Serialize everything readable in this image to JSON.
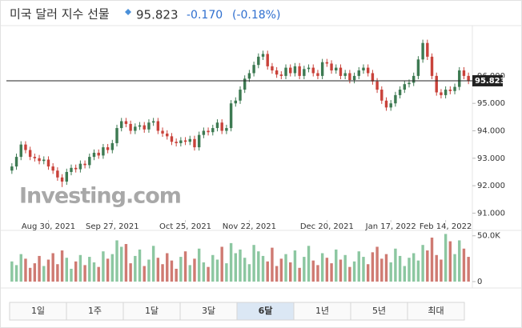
{
  "header": {
    "title": "미국 달러 지수 선물",
    "price": "95.823",
    "change": "-0.170",
    "change_percent": "(-0.18%)"
  },
  "logo": "Investing.com",
  "chart_data": [
    {
      "type": "candlestick",
      "up_color": "#3d7a52",
      "down_color": "#c9423a",
      "last_price": 95.823,
      "last_color": "#222222",
      "xlim": [
        -1.2,
        100.5
      ],
      "xticks": [
        {
          "value": 8,
          "label": "Aug 30, 2021"
        },
        {
          "value": 22,
          "label": "Sep 27, 2021"
        },
        {
          "value": 38,
          "label": "Oct 25, 2021"
        },
        {
          "value": 52,
          "label": "Nov 22, 2021"
        },
        {
          "value": 69,
          "label": "Dec 20, 2021"
        },
        {
          "value": 83,
          "label": "Jan 17, 2022"
        },
        {
          "value": 95,
          "label": "Feb 14, 2022"
        }
      ],
      "ylim": [
        90.75,
        97.6
      ],
      "yticks": [
        {
          "value": 91,
          "label": "91.000"
        },
        {
          "value": 92,
          "label": "92.000"
        },
        {
          "value": 93,
          "label": "93.000"
        },
        {
          "value": 94,
          "label": "94.000"
        },
        {
          "value": 95,
          "label": "95.000"
        },
        {
          "value": 96,
          "label": "96.000"
        }
      ],
      "open": [
        92.55,
        92.7,
        93.05,
        93.5,
        93.3,
        93.05,
        93.0,
        92.9,
        92.95,
        92.7,
        92.55,
        92.3,
        92.15,
        92.5,
        92.65,
        92.6,
        92.8,
        92.75,
        93.05,
        93.2,
        93.1,
        93.4,
        93.3,
        93.55,
        94.1,
        94.35,
        94.25,
        94.0,
        94.15,
        94.2,
        94.05,
        94.3,
        94.35,
        94.0,
        93.9,
        93.8,
        93.6,
        93.55,
        93.65,
        93.6,
        93.7,
        93.4,
        93.85,
        94.0,
        93.95,
        94.1,
        94.3,
        94.0,
        94.1,
        95.0,
        95.1,
        95.5,
        95.9,
        96.1,
        96.4,
        96.7,
        96.8,
        96.35,
        96.2,
        96.05,
        96.0,
        96.3,
        96.1,
        96.35,
        96.0,
        96.25,
        96.3,
        96.1,
        96.0,
        96.5,
        96.45,
        96.2,
        96.3,
        96.0,
        96.1,
        95.85,
        96.0,
        96.2,
        96.3,
        96.1,
        95.8,
        95.5,
        95.1,
        94.85,
        95.0,
        95.3,
        95.5,
        95.7,
        95.75,
        96.0,
        96.6,
        97.2,
        96.7,
        96.0,
        95.4,
        95.3,
        95.5,
        95.45,
        95.6,
        96.2,
        96.0
      ],
      "high": [
        92.82,
        93.17,
        93.62,
        93.62,
        93.42,
        93.17,
        93.12,
        93.07,
        93.07,
        92.82,
        92.67,
        92.42,
        92.62,
        92.77,
        92.77,
        92.92,
        92.92,
        93.17,
        93.32,
        93.32,
        93.52,
        93.52,
        93.67,
        94.22,
        94.47,
        94.47,
        94.37,
        94.27,
        94.32,
        94.32,
        94.42,
        94.47,
        94.47,
        94.12,
        94.02,
        93.92,
        93.72,
        93.77,
        93.77,
        93.82,
        93.82,
        93.97,
        94.12,
        94.12,
        94.22,
        94.42,
        94.42,
        94.22,
        95.12,
        95.22,
        95.62,
        96.02,
        96.22,
        96.52,
        96.82,
        96.92,
        96.92,
        96.47,
        96.32,
        96.17,
        96.42,
        96.42,
        96.47,
        96.47,
        96.37,
        96.42,
        96.42,
        96.22,
        96.62,
        96.62,
        96.57,
        96.42,
        96.42,
        96.22,
        96.22,
        96.12,
        96.32,
        96.42,
        96.42,
        96.22,
        95.92,
        95.62,
        95.22,
        95.12,
        95.42,
        95.62,
        95.82,
        95.87,
        96.12,
        96.72,
        97.32,
        97.32,
        96.82,
        96.12,
        95.52,
        95.62,
        95.62,
        95.72,
        96.32,
        96.32,
        96.12
      ],
      "low": [
        92.43,
        92.58,
        92.93,
        93.18,
        92.93,
        92.88,
        92.78,
        92.78,
        92.58,
        92.43,
        92.18,
        91.95,
        92.03,
        92.38,
        92.48,
        92.48,
        92.63,
        92.63,
        92.93,
        92.98,
        92.98,
        93.18,
        93.18,
        93.43,
        93.98,
        94.13,
        93.88,
        93.88,
        94.03,
        93.93,
        93.93,
        94.18,
        93.88,
        93.78,
        93.68,
        93.48,
        93.43,
        93.43,
        93.48,
        93.48,
        93.28,
        93.28,
        93.73,
        93.83,
        93.83,
        93.98,
        93.88,
        93.88,
        93.98,
        94.88,
        94.98,
        95.38,
        95.78,
        95.98,
        96.28,
        96.58,
        96.23,
        96.08,
        95.93,
        95.88,
        95.88,
        95.98,
        95.98,
        95.88,
        95.88,
        96.13,
        95.98,
        95.88,
        95.88,
        96.33,
        96.08,
        96.08,
        95.88,
        95.88,
        95.73,
        95.73,
        95.88,
        96.08,
        95.98,
        95.68,
        95.38,
        94.98,
        94.73,
        94.73,
        94.88,
        95.18,
        95.38,
        95.58,
        95.63,
        95.88,
        96.48,
        96.58,
        95.88,
        95.28,
        95.18,
        95.18,
        95.33,
        95.33,
        95.48,
        95.88,
        95.7
      ],
      "close": [
        92.7,
        93.05,
        93.5,
        93.3,
        93.05,
        93.0,
        92.9,
        92.95,
        92.7,
        92.55,
        92.3,
        92.15,
        92.5,
        92.65,
        92.6,
        92.8,
        92.75,
        93.05,
        93.2,
        93.1,
        93.4,
        93.3,
        93.55,
        94.1,
        94.35,
        94.25,
        94.0,
        94.15,
        94.2,
        94.05,
        94.3,
        94.35,
        94.0,
        93.9,
        93.8,
        93.6,
        93.55,
        93.65,
        93.6,
        93.7,
        93.4,
        93.85,
        94.0,
        93.95,
        94.1,
        94.3,
        94.0,
        94.1,
        95.0,
        95.1,
        95.5,
        95.9,
        96.1,
        96.4,
        96.7,
        96.8,
        96.35,
        96.2,
        96.05,
        96.0,
        96.3,
        96.1,
        96.35,
        96.0,
        96.25,
        96.3,
        96.1,
        96.0,
        96.5,
        96.45,
        96.2,
        96.3,
        96.0,
        96.1,
        95.85,
        96.0,
        96.2,
        96.3,
        96.1,
        95.8,
        95.5,
        95.1,
        94.85,
        95.0,
        95.3,
        95.5,
        95.7,
        95.75,
        96.0,
        96.6,
        97.2,
        96.7,
        96.0,
        95.4,
        95.3,
        95.5,
        95.45,
        95.6,
        96.2,
        96.0,
        95.823
      ]
    },
    {
      "type": "volume",
      "up_color": "#8cc7a1",
      "down_color": "#cf7a72",
      "xlim": [
        -1.2,
        100.5
      ],
      "ylim": [
        0,
        55000
      ],
      "yticks": [
        {
          "value": 50000,
          "label": "50.0K"
        },
        0
      ],
      "values": [
        22000,
        18000,
        30000,
        25000,
        15000,
        20000,
        28000,
        17000,
        24000,
        31000,
        19000,
        34000,
        26000,
        14000,
        22000,
        29000,
        18000,
        27000,
        21000,
        16000,
        33000,
        25000,
        30000,
        45000,
        38000,
        41000,
        20000,
        28000,
        35000,
        17000,
        24000,
        39000,
        26000,
        19000,
        31000,
        23000,
        14000,
        27000,
        33000,
        18000,
        25000,
        36000,
        21000,
        16000,
        29000,
        24000,
        38000,
        20000,
        42000,
        31000,
        35000,
        26000,
        19000,
        40000,
        33000,
        28000,
        22000,
        37000,
        17000,
        25000,
        30000,
        21000,
        34000,
        15000,
        27000,
        39000,
        23000,
        18000,
        31000,
        26000,
        20000,
        35000,
        24000,
        29000,
        16000,
        22000,
        33000,
        27000,
        19000,
        32000,
        38000,
        25000,
        30000,
        21000,
        36000,
        28000,
        17000,
        26000,
        31000,
        23000,
        40000,
        34000,
        48000,
        29000,
        24000,
        52000,
        44000,
        30000,
        45000,
        36000,
        27000
      ]
    }
  ],
  "buttons": [
    "1일",
    "1주",
    "1달",
    "3달",
    "6달",
    "1년",
    "5년",
    "최대"
  ]
}
